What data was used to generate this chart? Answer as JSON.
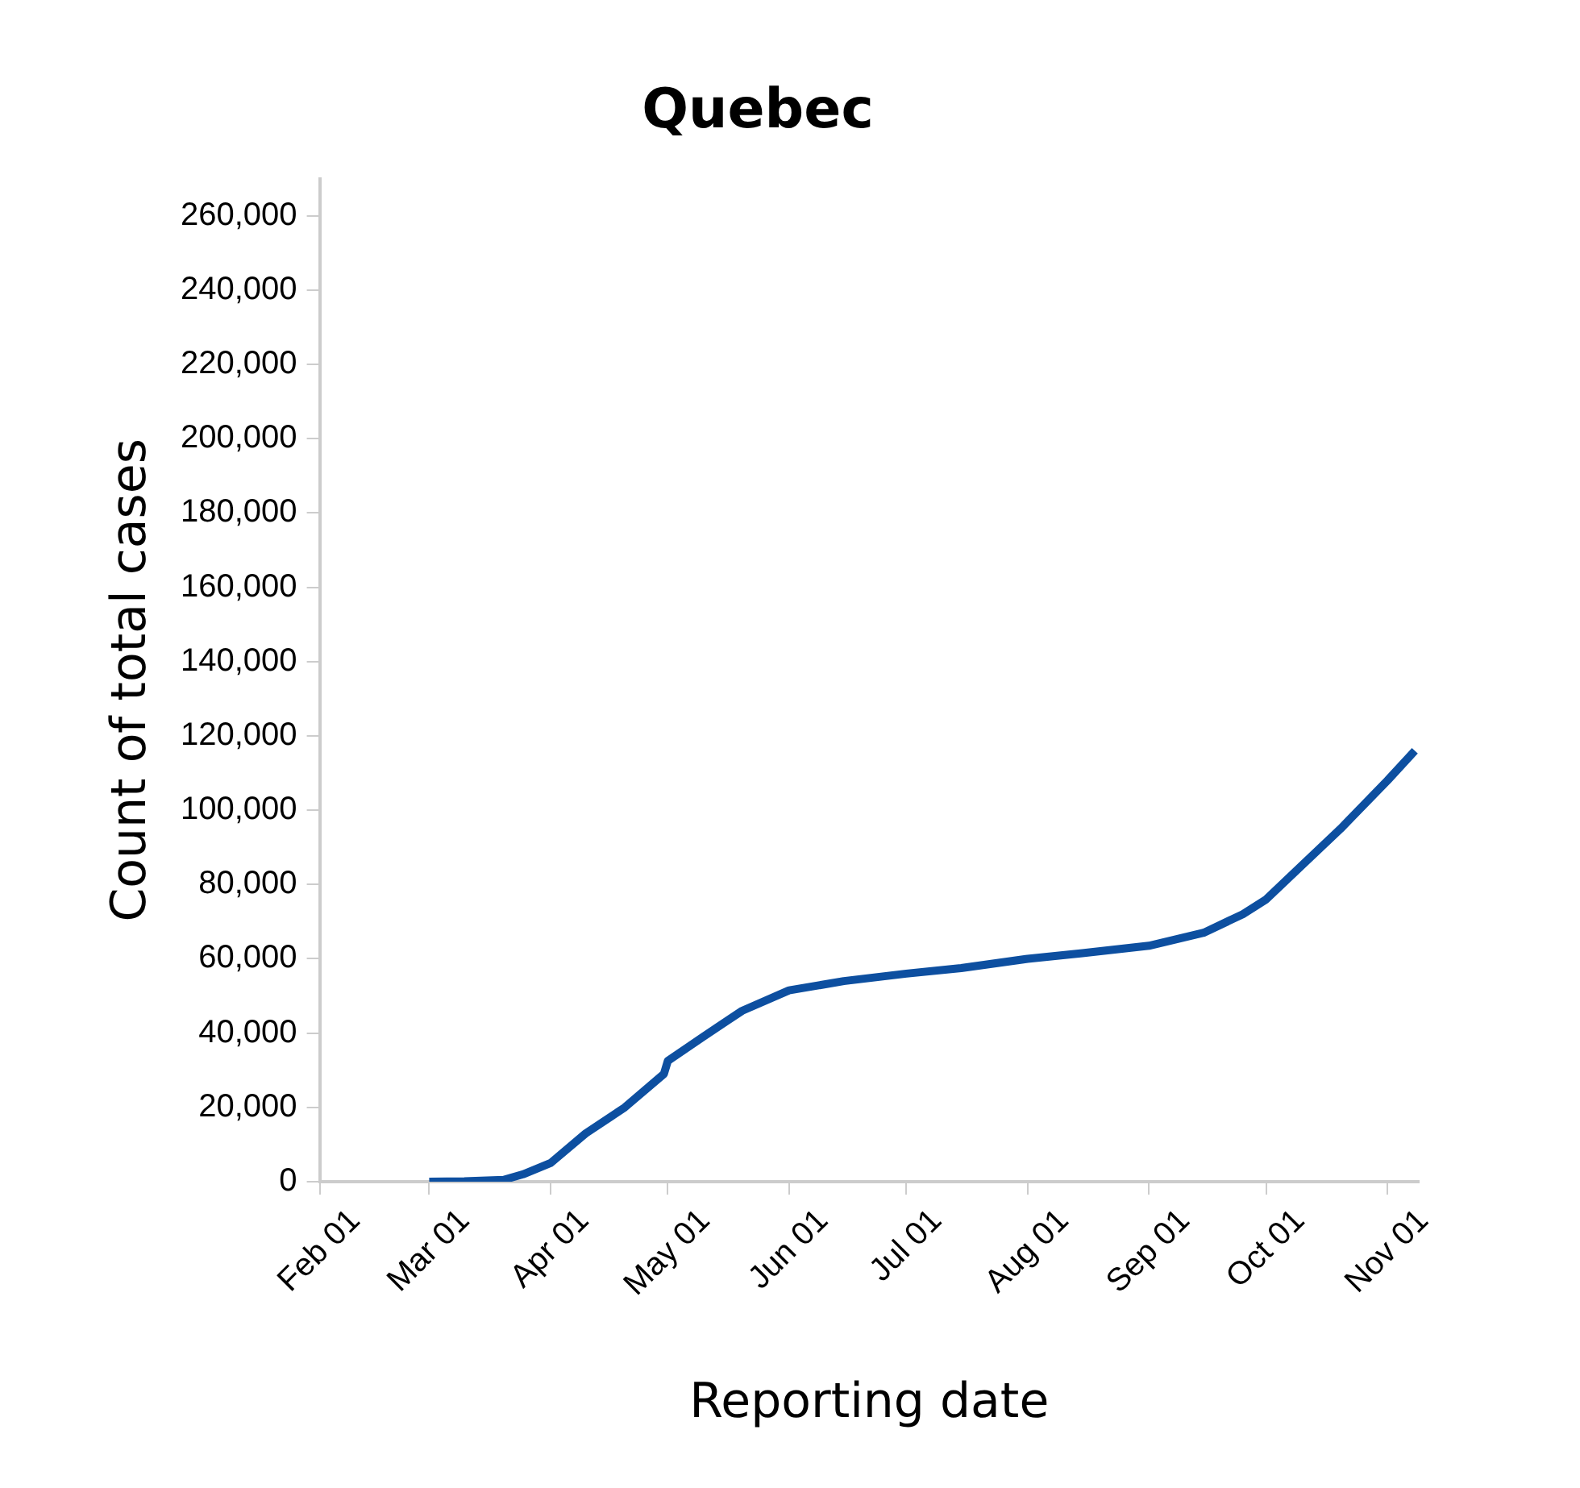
{
  "chart_data": {
    "type": "line",
    "title": "Quebec",
    "xlabel": "Reporting date",
    "ylabel": "Count of total cases",
    "x": [
      "--03-01",
      "--03-10",
      "--03-20",
      "--03-25",
      "--04-01",
      "--04-10",
      "--04-20",
      "--04-30",
      "--05-01",
      "--05-10",
      "--05-20",
      "--06-01",
      "--06-15",
      "--07-01",
      "--07-15",
      "--08-01",
      "--08-15",
      "--09-01",
      "--09-15",
      "--09-25",
      "--10-01",
      "--10-10",
      "--10-20",
      "--11-01",
      "--11-08"
    ],
    "series": [
      {
        "color": "#0d4fa0",
        "values": [
          0,
          100,
          500,
          2000,
          5000,
          13000,
          20000,
          29000,
          32500,
          39000,
          46000,
          51500,
          54000,
          56000,
          57500,
          60000,
          61500,
          63500,
          67000,
          72000,
          76000,
          85000,
          95000,
          108000,
          116000
        ]
      }
    ],
    "xlim": [
      "--02-01",
      "--11-09"
    ],
    "xticks": [
      {
        "value": "--02-01",
        "label": "Feb 01"
      },
      {
        "value": "--03-01",
        "label": "Mar 01"
      },
      {
        "value": "--04-01",
        "label": "Apr 01"
      },
      {
        "value": "--05-01",
        "label": "May 01"
      },
      {
        "value": "--06-01",
        "label": "Jun 01"
      },
      {
        "value": "--07-01",
        "label": "Jul 01"
      },
      {
        "value": "--08-01",
        "label": "Aug 01"
      },
      {
        "value": "--09-01",
        "label": "Sep 01"
      },
      {
        "value": "--10-01",
        "label": "Oct 01"
      },
      {
        "value": "--11-01",
        "label": "Nov 01"
      }
    ],
    "ylim": [
      0,
      270000
    ],
    "yticks": [
      {
        "value": 0,
        "label": "0"
      },
      {
        "value": 20000,
        "label": "20,000"
      },
      {
        "value": 40000,
        "label": "40,000"
      },
      {
        "value": 60000,
        "label": "60,000"
      },
      {
        "value": 80000,
        "label": "80,000"
      },
      {
        "value": 100000,
        "label": "100,000"
      },
      {
        "value": 120000,
        "label": "120,000"
      },
      {
        "value": 140000,
        "label": "140,000"
      },
      {
        "value": 160000,
        "label": "160,000"
      },
      {
        "value": 180000,
        "label": "180,000"
      },
      {
        "value": 200000,
        "label": "200,000"
      },
      {
        "value": 220000,
        "label": "220,000"
      },
      {
        "value": 240000,
        "label": "240,000"
      },
      {
        "value": 260000,
        "label": "260,000"
      }
    ],
    "grid": false,
    "legend": false,
    "marker": "none",
    "line_style": "solid"
  }
}
